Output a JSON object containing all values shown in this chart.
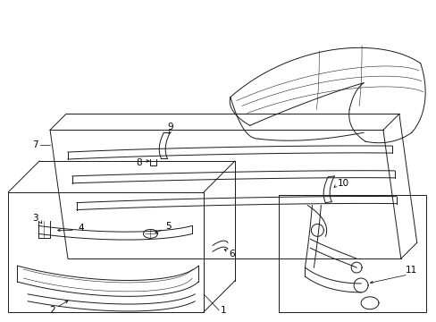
{
  "bg_color": "#ffffff",
  "line_color": "#1a1a1a",
  "fig_width": 4.89,
  "fig_height": 3.6,
  "dpi": 100,
  "lw": 0.7,
  "fs": 7.5
}
